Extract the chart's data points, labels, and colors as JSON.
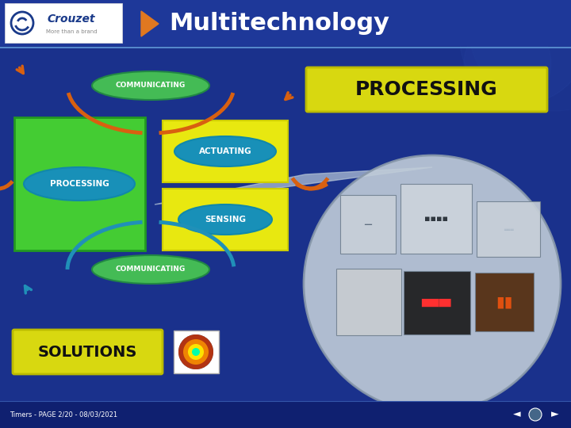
{
  "title": "Multitechnology",
  "background_color": "#1a318c",
  "header_bg": "#1e3899",
  "header_line_color": "#5588cc",
  "title_color": "#ffffff",
  "title_fontsize": 22,
  "arrow_color_orange": "#d86010",
  "arrow_color_cyan": "#2090b8",
  "processing_box_color": "#44cc33",
  "actuating_sensing_box_color": "#e8e810",
  "communicating_ellipse_color": "#44bb55",
  "big_processing_box_color": "#d8d810",
  "big_processing_text": "PROCESSING",
  "solutions_box_color": "#d8d810",
  "solutions_text": "SOLUTIONS",
  "footer_text": "Timers - PAGE 2/20 - 08/03/2021",
  "footer_color": "#ffffff",
  "footer_fontsize": 6,
  "circle_bg_inner": "#c0ccd8",
  "circle_bg_outer": "#9aaabb",
  "magnify_cone_color": "#b8c8d8",
  "crouzet_logo_bg": "#ffffff"
}
